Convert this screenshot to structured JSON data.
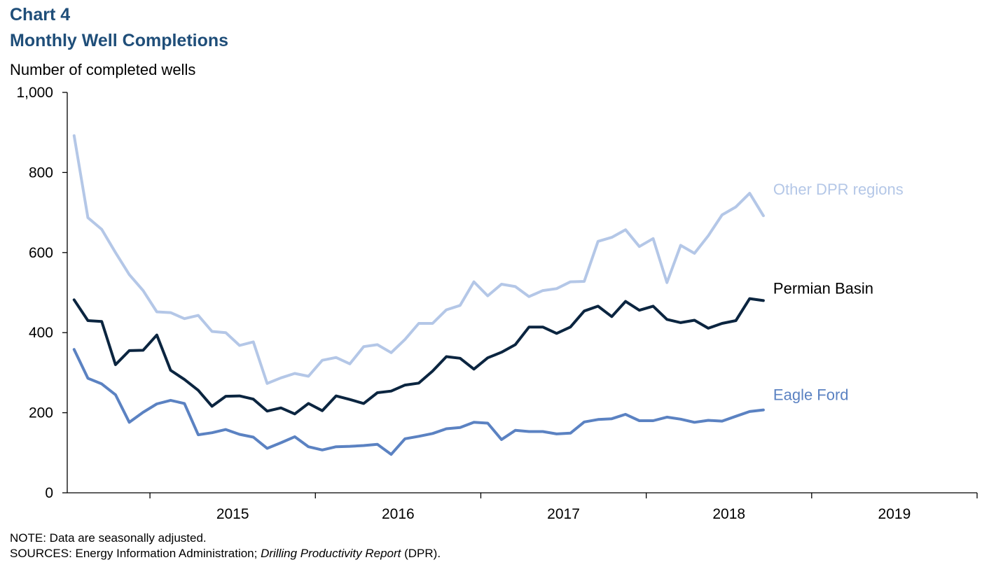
{
  "header": {
    "chart_number": "Chart 4",
    "title": "Monthly Well Completions"
  },
  "footer": {
    "note": "NOTE: Data are seasonally adjusted.",
    "sources_prefix": "SOURCES: Energy Information Administration; ",
    "sources_italic": "Drilling Productivity Report",
    "sources_suffix": " (DPR)."
  },
  "chart_data": {
    "type": "line",
    "title": "Monthly Well Completions",
    "ylabel": "Number of completed wells",
    "xlabel": "",
    "ylim": [
      0,
      1000
    ],
    "yticks": [
      0,
      200,
      400,
      600,
      800,
      1000
    ],
    "ytick_labels": [
      "0",
      "200",
      "400",
      "600",
      "800",
      "1,000"
    ],
    "xticks": [
      "2015",
      "2016",
      "2017",
      "2018",
      "2019"
    ],
    "x_start": "2014-07",
    "x_end": "2019-12",
    "grid": false,
    "legend": "inline labels at line ends",
    "series": [
      {
        "name": "Other DPR regions",
        "color": "#b4c7e7",
        "values": [
          892,
          687,
          658,
          600,
          545,
          505,
          452,
          450,
          435,
          443,
          403,
          400,
          368,
          377,
          273,
          287,
          298,
          291,
          331,
          338,
          322,
          365,
          370,
          350,
          383,
          423,
          423,
          457,
          468,
          527,
          492,
          521,
          515,
          490,
          505,
          510,
          527,
          528,
          628,
          638,
          657,
          615,
          635,
          525,
          618,
          598,
          642,
          694,
          714,
          748,
          692
        ]
      },
      {
        "name": "Permian Basin",
        "color": "#0b2540",
        "values": [
          482,
          430,
          428,
          320,
          355,
          356,
          394,
          306,
          283,
          256,
          216,
          241,
          242,
          234,
          204,
          212,
          197,
          223,
          205,
          242,
          233,
          223,
          250,
          254,
          269,
          274,
          304,
          340,
          336,
          309,
          337,
          351,
          370,
          414,
          414,
          398,
          414,
          454,
          466,
          440,
          478,
          456,
          466,
          433,
          425,
          431,
          411,
          423,
          430,
          485,
          480
        ]
      },
      {
        "name": "Eagle Ford",
        "color": "#5b82c2",
        "values": [
          358,
          286,
          272,
          245,
          176,
          201,
          222,
          231,
          223,
          145,
          150,
          158,
          146,
          139,
          111,
          125,
          140,
          115,
          107,
          115,
          116,
          118,
          121,
          96,
          135,
          141,
          148,
          160,
          163,
          176,
          174,
          133,
          156,
          153,
          153,
          147,
          149,
          177,
          183,
          185,
          196,
          180,
          180,
          189,
          184,
          176,
          181,
          179,
          191,
          203,
          207
        ]
      }
    ]
  }
}
